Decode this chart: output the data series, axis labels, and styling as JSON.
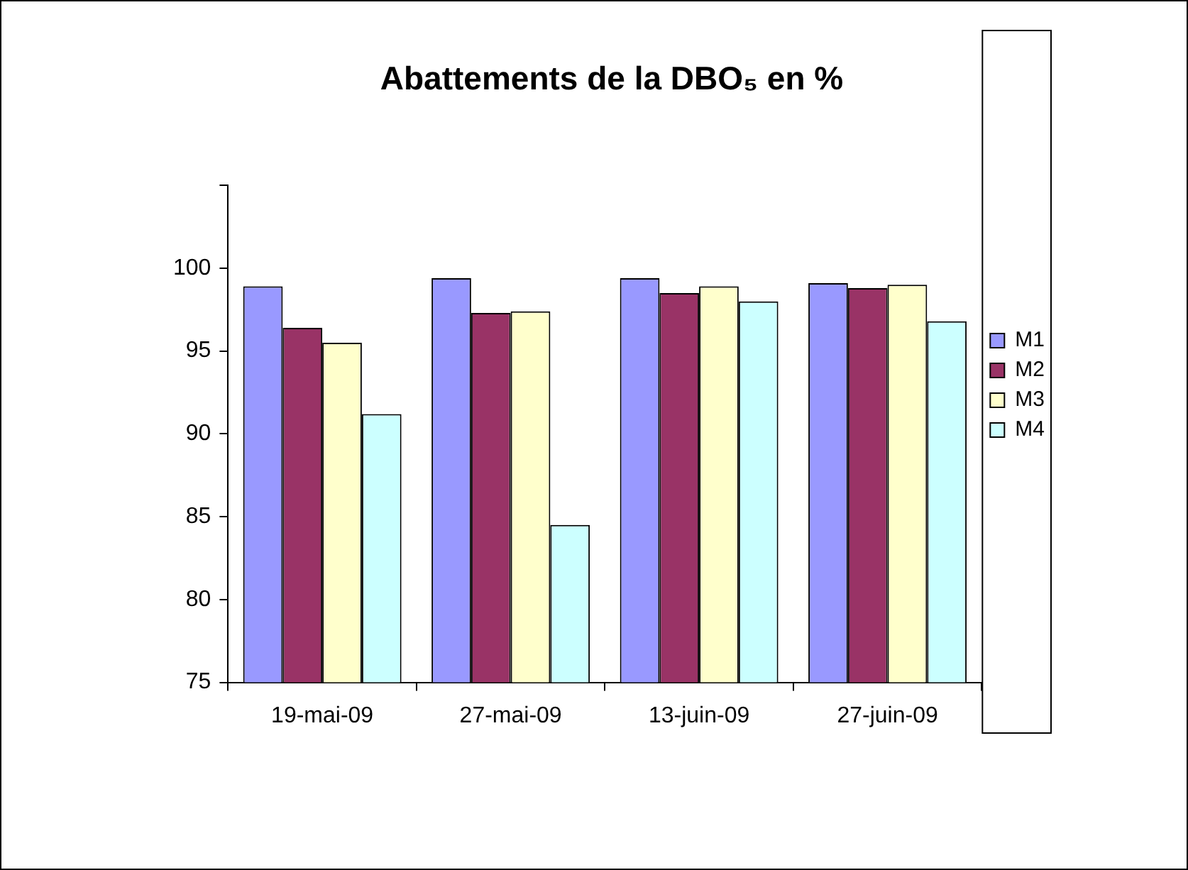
{
  "chart_data": {
    "type": "bar",
    "title": "Abattements de la DBO₅ en %",
    "categories": [
      "19-mai-09",
      "27-mai-09",
      "13-juin-09",
      "27-juin-09"
    ],
    "series": [
      {
        "name": "M1",
        "color": "#9999ff",
        "values": [
          98.9,
          99.4,
          99.4,
          99.1
        ]
      },
      {
        "name": "M2",
        "color": "#993366",
        "values": [
          96.4,
          97.3,
          98.5,
          98.8
        ]
      },
      {
        "name": "M3",
        "color": "#ffffcc",
        "values": [
          95.5,
          97.4,
          98.9,
          99.0
        ]
      },
      {
        "name": "M4",
        "color": "#ccffff",
        "values": [
          91.2,
          84.5,
          98.0,
          96.8
        ]
      }
    ],
    "ylim": [
      75,
      105
    ],
    "yticks": [
      75,
      80,
      85,
      90,
      95,
      100,
      {
        "value": 105,
        "label": null
      }
    ],
    "grid": false,
    "legend": "right"
  }
}
